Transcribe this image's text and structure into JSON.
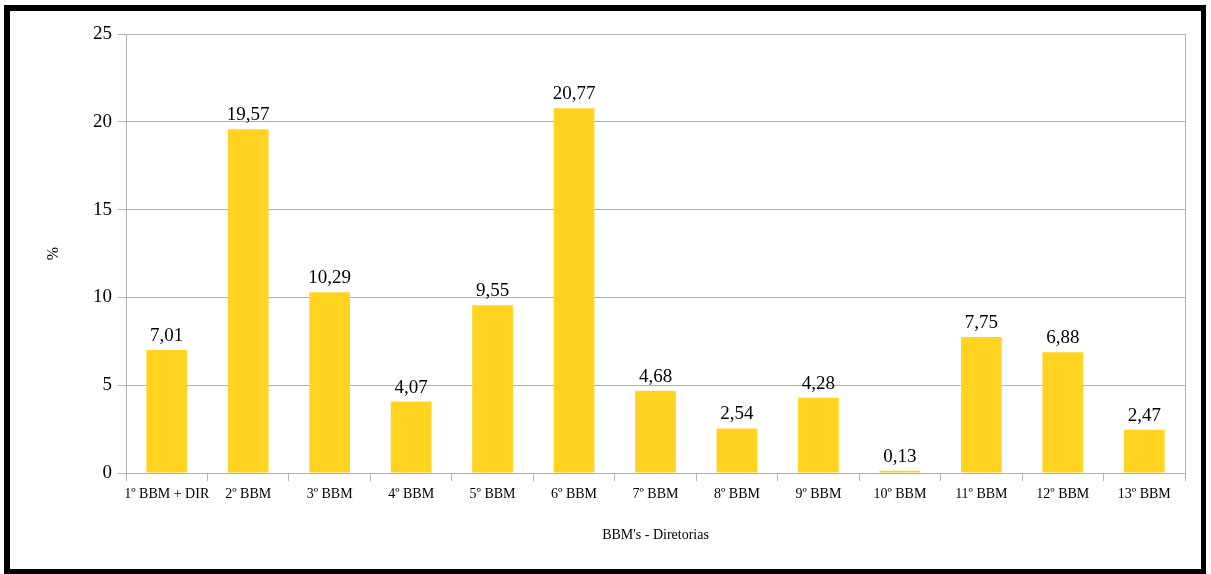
{
  "chart_data": {
    "type": "bar",
    "xlabel": "BBM's - Diretorias",
    "ylabel": "%",
    "categories": [
      "1º BBM + DIR",
      "2º BBM",
      "3º BBM",
      "4º BBM",
      "5º BBM",
      "6º BBM",
      "7º BBM",
      "8º BBM",
      "9º BBM",
      "10º BBM",
      "11º BBM",
      "12º BBM",
      "13º BBM"
    ],
    "values": [
      7.01,
      19.57,
      10.29,
      4.07,
      9.55,
      20.77,
      4.68,
      2.54,
      4.28,
      0.13,
      7.75,
      6.88,
      2.47
    ],
    "value_labels": [
      "7,01",
      "19,57",
      "10,29",
      "4,07",
      "9,55",
      "20,77",
      "4,68",
      "2,54",
      "4,28",
      "0,13",
      "7,75",
      "6,88",
      "2,47"
    ],
    "color": "#ffd320",
    "ylim": [
      0,
      25
    ],
    "yticks": [
      0,
      5,
      10,
      15,
      20,
      25
    ],
    "grid": "y"
  }
}
